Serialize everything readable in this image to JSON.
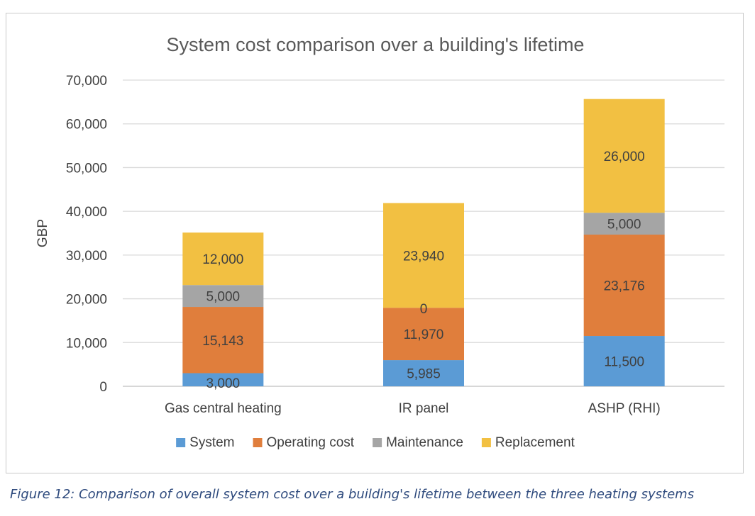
{
  "chart_data": {
    "type": "bar",
    "stacked": true,
    "title": "System cost comparison over a building's lifetime",
    "ylabel": "GBP",
    "xlabel": "",
    "ylim": [
      0,
      70000
    ],
    "yticks": [
      0,
      10000,
      20000,
      30000,
      40000,
      50000,
      60000,
      70000
    ],
    "ytick_labels": [
      "0",
      "10,000",
      "20,000",
      "30,000",
      "40,000",
      "50,000",
      "60,000",
      "70,000"
    ],
    "grid": true,
    "legend_position": "bottom",
    "categories": [
      "Gas central heating",
      "IR panel",
      "ASHP (RHI)"
    ],
    "series": [
      {
        "name": "System",
        "color": "#5b9bd5",
        "values": [
          3000,
          5985,
          11500
        ],
        "labels": [
          "3,000",
          "5,985",
          "11,500"
        ]
      },
      {
        "name": "Operating cost",
        "color": "#e07e3c",
        "values": [
          15143,
          11970,
          23176
        ],
        "labels": [
          "15,143",
          "11,970",
          "23,176"
        ]
      },
      {
        "name": "Maintenance",
        "color": "#a5a5a5",
        "values": [
          5000,
          0,
          5000
        ],
        "labels": [
          "5,000",
          "0",
          "5,000"
        ]
      },
      {
        "name": "Replacement",
        "color": "#f2c042",
        "values": [
          12000,
          23940,
          26000
        ],
        "labels": [
          "12,000",
          "23,940",
          "26,000"
        ]
      }
    ]
  },
  "caption": "Figure 12: Comparison of overall system cost over a building's lifetime between the three heating systems"
}
